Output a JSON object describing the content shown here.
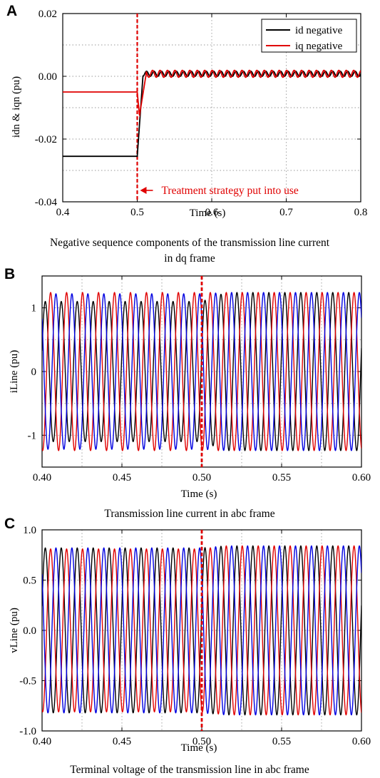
{
  "chart_data": [
    {
      "panel": "A",
      "type": "line",
      "xlabel": "Time (s)",
      "ylabel": "idn & iqn (pu)",
      "xlim": [
        0.4,
        0.8
      ],
      "ylim": [
        -0.04,
        0.02
      ],
      "xticks": [
        "0.4",
        "0.5",
        "0.6",
        "0.7",
        "0.8"
      ],
      "yticks": [
        "-0.04",
        "-0.02",
        "0.00",
        "0.02"
      ],
      "grid": true,
      "legend": "top-right",
      "caption": "Negative sequence components of the transmission line current in dq frame",
      "caption_lines": [
        "Negative sequence components of the transmission line current",
        "in dq frame"
      ],
      "annotation": {
        "text": "Treatment strategy put into use",
        "x": 0.5
      },
      "series": [
        {
          "name": "id negative",
          "color": "#000000",
          "pre_value": -0.0255,
          "post_value": 0.0,
          "switch_time": 0.5,
          "ripple_amplitude": 0.0008,
          "ripple_frequency_hz": 100
        },
        {
          "name": "iq negative",
          "color": "#e00000",
          "pre_value": -0.005,
          "post_value": 0.0008,
          "dip_value": -0.0125,
          "switch_time": 0.5,
          "ripple_amplitude": 0.0011,
          "ripple_frequency_hz": 100
        }
      ]
    },
    {
      "panel": "B",
      "type": "line",
      "xlabel": "Time (s)",
      "ylabel": "iLine (pu)",
      "xlim": [
        0.4,
        0.6
      ],
      "ylim": [
        -1.5,
        1.5
      ],
      "xticks": [
        "0.40",
        "0.45",
        "0.50",
        "0.55",
        "0.60"
      ],
      "yticks": [
        "-1",
        "0",
        "1"
      ],
      "grid": true,
      "caption": "Transmission line current in abc frame",
      "marker_time": 0.5,
      "frequency_hz": 100,
      "series": [
        {
          "name": "",
          "phase": "a",
          "color": "#000000",
          "phase_deg": 0,
          "amplitude_before": 1.1,
          "amplitude_after": 1.24
        },
        {
          "name": "",
          "phase": "b",
          "color": "#e00000",
          "phase_deg": -120,
          "amplitude_before": 1.24,
          "amplitude_after": 1.24
        },
        {
          "name": "",
          "phase": "c",
          "color": "#0000e0",
          "phase_deg": 120,
          "amplitude_before": 1.22,
          "amplitude_after": 1.24
        }
      ]
    },
    {
      "panel": "C",
      "type": "line",
      "xlabel": "Time (s)",
      "ylabel": "vLine (pu)",
      "xlim": [
        0.4,
        0.6
      ],
      "ylim": [
        -1.0,
        1.0
      ],
      "xticks": [
        "0.40",
        "0.45",
        "0.50",
        "0.55",
        "0.60"
      ],
      "yticks": [
        "-1.0",
        "-0.5",
        "0.0",
        "0.5",
        "1.0"
      ],
      "grid": true,
      "caption": "Terminal voltage of the transmission line in abc frame",
      "marker_time": 0.5,
      "frequency_hz": 100,
      "series": [
        {
          "name": "",
          "phase": "a",
          "color": "#000000",
          "phase_deg": 0,
          "amplitude_before": 0.82,
          "amplitude_after": 0.84
        },
        {
          "name": "",
          "phase": "b",
          "color": "#e00000",
          "phase_deg": -120,
          "amplitude_before": 0.81,
          "amplitude_after": 0.84
        },
        {
          "name": "",
          "phase": "c",
          "color": "#0000e0",
          "phase_deg": 120,
          "amplitude_before": 0.82,
          "amplitude_after": 0.84
        }
      ]
    }
  ],
  "colors": {
    "marker": "#e00000",
    "grid": "#9a9a9a"
  }
}
